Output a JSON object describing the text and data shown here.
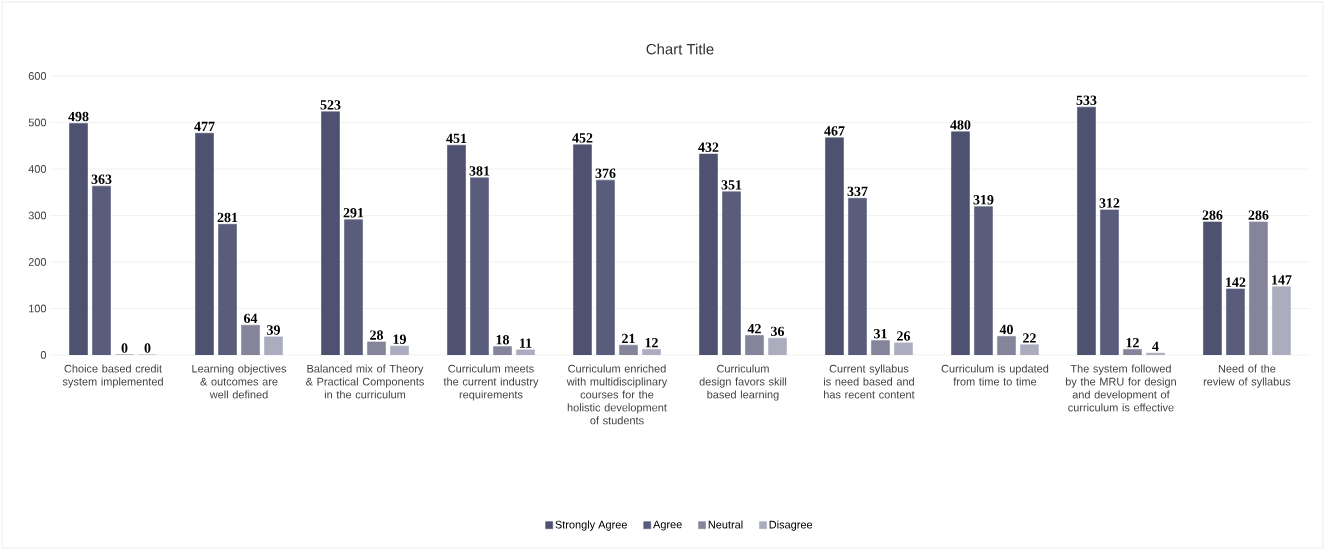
{
  "chart_data": {
    "type": "bar",
    "title": "Chart Title",
    "categories": [
      "Choice based credit system implemented",
      "Learning objectives & outcomes are well defined",
      "Balanced mix of Theory & Practical Components in the curriculum",
      "Curriculum meets the current industry requirements",
      "Curriculum enriched with multidisciplinary courses for the holistic development of students",
      "Curriculum design favors skill based learning",
      "Current syllabus is need based and has recent content",
      "Curriculum is updated from time to time",
      "The system followed by the MRU for design and development of curriculum is effective",
      "Need of the review of syllabus"
    ],
    "series": [
      {
        "name": "Strongly Agree",
        "color": "#4f5170",
        "values": [
          498,
          477,
          523,
          451,
          452,
          432,
          467,
          480,
          533,
          286
        ]
      },
      {
        "name": "Agree",
        "color": "#5a5c7c",
        "values": [
          363,
          281,
          291,
          381,
          376,
          351,
          337,
          319,
          312,
          142
        ]
      },
      {
        "name": "Neutral",
        "color": "#84859b",
        "values": [
          0,
          64,
          28,
          18,
          21,
          42,
          31,
          40,
          12,
          286
        ]
      },
      {
        "name": "Disagree",
        "color": "#abacbd",
        "values": [
          0,
          39,
          19,
          11,
          12,
          36,
          26,
          22,
          4,
          147
        ]
      }
    ],
    "ylim": [
      0,
      600
    ],
    "yticks": [
      0,
      100,
      200,
      300,
      400,
      500,
      600
    ],
    "grid": "y",
    "legend": "bottom",
    "data_labels": true
  }
}
